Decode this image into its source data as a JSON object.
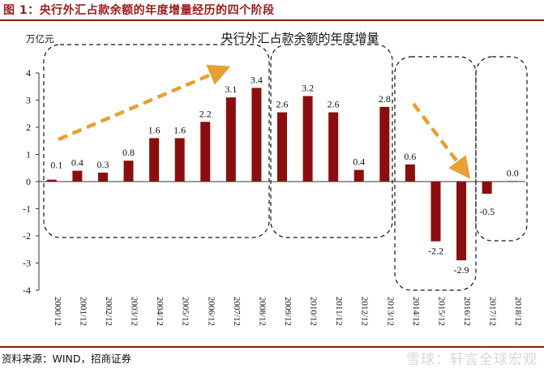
{
  "figure_title": "图 1：央行外汇占款余额的年度增量经历的四个阶段",
  "source": "资料来源：WIND，招商证券",
  "watermark": "雪球：轩言全球宏观",
  "colors": {
    "bar": "#8b0e0e",
    "arrow": "#e8a033",
    "accent": "#9b1b1b"
  },
  "chart_data": {
    "type": "bar",
    "title": "央行外汇占款余额的年度增量",
    "ylabel": "万亿元",
    "ylim": [
      -4,
      4
    ],
    "yticks": [
      "4",
      "3",
      "2",
      "1",
      "0",
      "-1",
      "-2",
      "-3",
      "-4"
    ],
    "categories": [
      "2000/12",
      "2001/12",
      "2002/12",
      "2003/12",
      "2004/12",
      "2005/12",
      "2006/12",
      "2007/12",
      "2008/12",
      "2009/12",
      "2010/12",
      "2011/12",
      "2012/12",
      "2013/12",
      "2014/12",
      "2015/12",
      "2016/12",
      "2017/12",
      "2018/12"
    ],
    "values": [
      0.07,
      0.4,
      0.33,
      0.77,
      1.6,
      1.6,
      2.2,
      3.1,
      3.45,
      2.55,
      3.15,
      2.55,
      0.43,
      2.75,
      0.63,
      -2.2,
      -2.9,
      -0.45,
      0.02
    ],
    "data_labels": [
      "0.1",
      "0.4",
      "0.3",
      "0.8",
      "1.6",
      "1.6",
      "2.2",
      "3.1",
      "3.4",
      "2.6",
      "3.2",
      "2.6",
      "0.4",
      "2.8",
      "0.6",
      "-2.2",
      "-2.9",
      "-0.5",
      "0.0"
    ],
    "phases": [
      "2000/12-2008/12",
      "2009/12-2013/12",
      "2014/12-2016/12",
      "2017/12-2018/12"
    ]
  }
}
